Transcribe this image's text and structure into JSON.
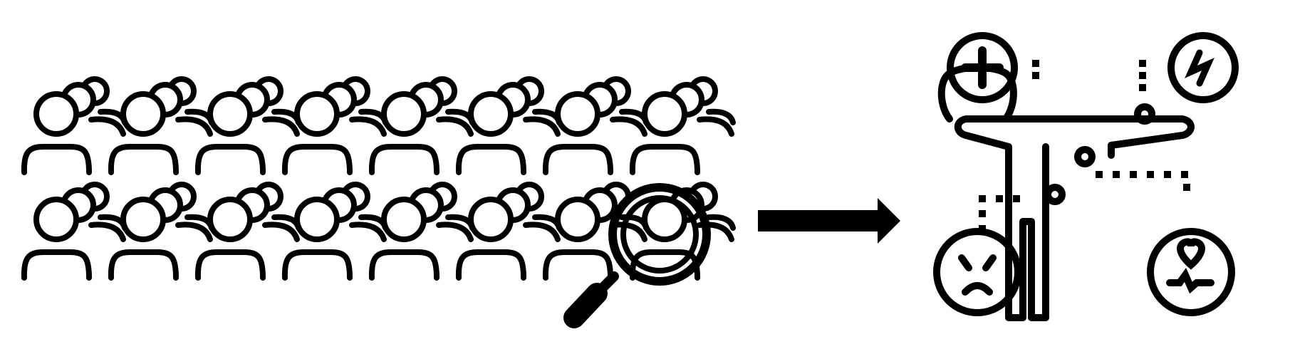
{
  "figure": {
    "ink_color": "#000000",
    "background_color": "#ffffff",
    "crowd": {
      "icon": "user-group-icon",
      "rows": 2,
      "groups_per_row": 8,
      "people_per_group": 3
    },
    "search": {
      "icon": "magnifying-glass-icon"
    },
    "connector": {
      "icon": "right-arrow-icon"
    },
    "patient": {
      "icon": "person-health-diagnosis-icon",
      "badges": [
        {
          "icon": "medical-plus-icon"
        },
        {
          "icon": "lightning-bolt-icon"
        },
        {
          "icon": "sick-face-icon"
        },
        {
          "icon": "heart-pulse-icon"
        }
      ]
    }
  }
}
